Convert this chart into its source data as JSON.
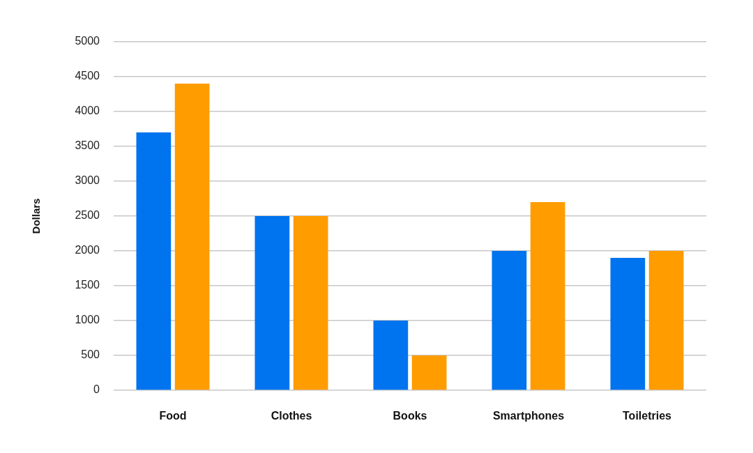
{
  "chart_data": {
    "type": "bar",
    "ylabel": "Dollars",
    "categories": [
      "Food",
      "Clothes",
      "Books",
      "Smartphones",
      "Toiletries"
    ],
    "series": [
      {
        "color": "#0073ef",
        "values": [
          3700,
          2500,
          1000,
          2000,
          1900
        ]
      },
      {
        "color": "#ff9c00",
        "values": [
          4400,
          2500,
          500,
          2700,
          2000
        ]
      }
    ],
    "ylim": [
      0,
      5000
    ],
    "yticks": [
      0,
      500,
      1000,
      1500,
      2000,
      2500,
      3000,
      3500,
      4000,
      4500,
      5000
    ],
    "grid": "y"
  }
}
